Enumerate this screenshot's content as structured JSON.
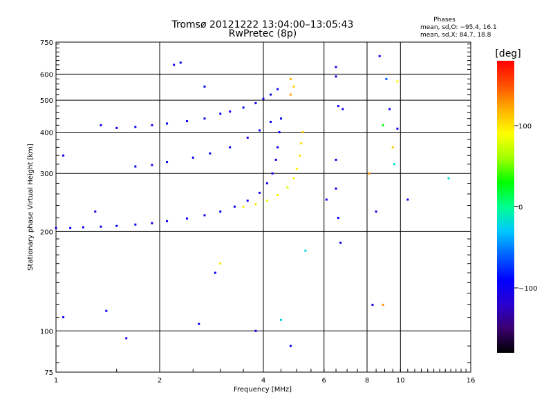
{
  "title": "Tromsø 20121222 13:04:00–13:05:43",
  "subtitle": "RwPretec (8p)",
  "phases_box": {
    "heading": "Phases",
    "line_o": "mean, sd,O: −95.4, 16.1",
    "line_x": "mean, sd,X:  84.7, 18.8"
  },
  "colorbar": {
    "label": "[deg]",
    "min": -180,
    "max": 180,
    "ticks": [
      {
        "value": 100,
        "label": "100"
      },
      {
        "value": 0,
        "label": "0"
      },
      {
        "value": -100,
        "label": "−100"
      }
    ],
    "stops": [
      "#000000",
      "#3a0070",
      "#2a00d0",
      "#0000ff",
      "#0060ff",
      "#00c8ff",
      "#00ff90",
      "#00ff00",
      "#a0ff00",
      "#ffff00",
      "#ffb000",
      "#ff5000",
      "#ff0000"
    ]
  },
  "chart_data": {
    "type": "scatter",
    "xlabel": "Frequency [MHz]",
    "ylabel": "Stationary phase Virtual Height [km]",
    "x_scale": "log",
    "y_scale": "log",
    "xlim": [
      1,
      16
    ],
    "ylim": [
      75,
      750
    ],
    "x_ticks": [
      {
        "v": 1,
        "label": "1"
      },
      {
        "v": 2,
        "label": "2"
      },
      {
        "v": 4,
        "label": "4"
      },
      {
        "v": 6,
        "label": "6"
      },
      {
        "v": 8,
        "label": "8"
      },
      {
        "v": 10,
        "label": "10"
      },
      {
        "v": 16,
        "label": "16"
      }
    ],
    "y_ticks": [
      {
        "v": 75,
        "label": "75"
      },
      {
        "v": 100,
        "label": "100"
      },
      {
        "v": 200,
        "label": "200"
      },
      {
        "v": 300,
        "label": "300"
      },
      {
        "v": 400,
        "label": "400"
      },
      {
        "v": 500,
        "label": "500"
      },
      {
        "v": 600,
        "label": "600"
      },
      {
        "v": 750,
        "label": "750"
      }
    ],
    "grid": true,
    "series": [
      {
        "points": [
          {
            "x": 1.0,
            "y": 205,
            "phase": -100
          },
          {
            "x": 1.1,
            "y": 205,
            "phase": -100
          },
          {
            "x": 1.2,
            "y": 206,
            "phase": -98
          },
          {
            "x": 1.35,
            "y": 207,
            "phase": -100
          },
          {
            "x": 1.5,
            "y": 208,
            "phase": -95
          },
          {
            "x": 1.7,
            "y": 210,
            "phase": -98
          },
          {
            "x": 1.9,
            "y": 212,
            "phase": -100
          },
          {
            "x": 2.1,
            "y": 215,
            "phase": -95
          },
          {
            "x": 2.4,
            "y": 219,
            "phase": -100
          },
          {
            "x": 2.7,
            "y": 224,
            "phase": -98
          },
          {
            "x": 3.0,
            "y": 230,
            "phase": -95
          },
          {
            "x": 3.3,
            "y": 238,
            "phase": -100
          },
          {
            "x": 3.6,
            "y": 248,
            "phase": -98
          },
          {
            "x": 3.9,
            "y": 262,
            "phase": -100
          },
          {
            "x": 4.1,
            "y": 280,
            "phase": -100
          },
          {
            "x": 4.25,
            "y": 300,
            "phase": -100
          },
          {
            "x": 4.35,
            "y": 330,
            "phase": -100
          },
          {
            "x": 4.4,
            "y": 360,
            "phase": -100
          },
          {
            "x": 4.45,
            "y": 400,
            "phase": -100
          },
          {
            "x": 4.5,
            "y": 440,
            "phase": -100
          }
        ]
      },
      {
        "points": [
          {
            "x": 1.35,
            "y": 420,
            "phase": -95
          },
          {
            "x": 1.5,
            "y": 412,
            "phase": -100
          },
          {
            "x": 1.7,
            "y": 415,
            "phase": -98
          },
          {
            "x": 1.9,
            "y": 420,
            "phase": -100
          },
          {
            "x": 2.1,
            "y": 425,
            "phase": -95
          },
          {
            "x": 2.4,
            "y": 432,
            "phase": -100
          },
          {
            "x": 2.7,
            "y": 440,
            "phase": -98
          },
          {
            "x": 3.0,
            "y": 455,
            "phase": -100
          },
          {
            "x": 3.2,
            "y": 462,
            "phase": -100
          },
          {
            "x": 3.5,
            "y": 475,
            "phase": -95
          },
          {
            "x": 3.8,
            "y": 490,
            "phase": -100
          },
          {
            "x": 4.0,
            "y": 505,
            "phase": -100
          },
          {
            "x": 4.2,
            "y": 520,
            "phase": -100
          },
          {
            "x": 4.4,
            "y": 540,
            "phase": -100
          }
        ]
      },
      {
        "points": [
          {
            "x": 1.7,
            "y": 315,
            "phase": -95
          },
          {
            "x": 1.9,
            "y": 318,
            "phase": -100
          },
          {
            "x": 2.1,
            "y": 325,
            "phase": -98
          },
          {
            "x": 2.5,
            "y": 335,
            "phase": -100
          },
          {
            "x": 2.8,
            "y": 345,
            "phase": -98
          },
          {
            "x": 3.2,
            "y": 360,
            "phase": -100
          },
          {
            "x": 3.6,
            "y": 385,
            "phase": -100
          },
          {
            "x": 3.9,
            "y": 405,
            "phase": -98
          },
          {
            "x": 4.2,
            "y": 430,
            "phase": -100
          }
        ]
      },
      {
        "points": [
          {
            "x": 3.5,
            "y": 238,
            "phase": 95
          },
          {
            "x": 3.8,
            "y": 242,
            "phase": 100
          },
          {
            "x": 4.1,
            "y": 248,
            "phase": 85
          },
          {
            "x": 4.4,
            "y": 258,
            "phase": 90
          },
          {
            "x": 4.7,
            "y": 272,
            "phase": 80
          },
          {
            "x": 4.9,
            "y": 290,
            "phase": 88
          },
          {
            "x": 5.0,
            "y": 310,
            "phase": 95
          },
          {
            "x": 5.1,
            "y": 340,
            "phase": 100
          },
          {
            "x": 5.15,
            "y": 370,
            "phase": 105
          },
          {
            "x": 5.2,
            "y": 400,
            "phase": 110
          },
          {
            "x": 4.8,
            "y": 520,
            "phase": 125
          },
          {
            "x": 4.9,
            "y": 550,
            "phase": 110
          }
        ]
      },
      {
        "points": [
          {
            "x": 2.2,
            "y": 640,
            "phase": -100
          },
          {
            "x": 2.3,
            "y": 650,
            "phase": -90
          },
          {
            "x": 2.7,
            "y": 550,
            "phase": -95
          },
          {
            "x": 6.5,
            "y": 630,
            "phase": -100
          },
          {
            "x": 6.5,
            "y": 590,
            "phase": -100
          },
          {
            "x": 6.6,
            "y": 480,
            "phase": -100
          },
          {
            "x": 6.5,
            "y": 330,
            "phase": -100
          },
          {
            "x": 6.5,
            "y": 270,
            "phase": -100
          },
          {
            "x": 6.6,
            "y": 220,
            "phase": -100
          },
          {
            "x": 6.7,
            "y": 185,
            "phase": -100
          },
          {
            "x": 6.1,
            "y": 250,
            "phase": -100
          },
          {
            "x": 8.7,
            "y": 680,
            "phase": -100
          },
          {
            "x": 8.5,
            "y": 230,
            "phase": -100
          },
          {
            "x": 9.1,
            "y": 580,
            "phase": -60
          },
          {
            "x": 4.8,
            "y": 580,
            "phase": 120
          },
          {
            "x": 1.3,
            "y": 230,
            "phase": -110
          },
          {
            "x": 1.05,
            "y": 340,
            "phase": -100
          },
          {
            "x": 1.05,
            "y": 110,
            "phase": -100
          },
          {
            "x": 1.4,
            "y": 115,
            "phase": -100
          },
          {
            "x": 1.6,
            "y": 95,
            "phase": -110
          },
          {
            "x": 2.6,
            "y": 105,
            "phase": -100
          },
          {
            "x": 3.8,
            "y": 100,
            "phase": -100
          },
          {
            "x": 4.5,
            "y": 108,
            "phase": -20
          },
          {
            "x": 4.8,
            "y": 90,
            "phase": -100
          },
          {
            "x": 3.0,
            "y": 160,
            "phase": 100
          },
          {
            "x": 2.9,
            "y": 150,
            "phase": -100
          },
          {
            "x": 5.3,
            "y": 175,
            "phase": -20
          },
          {
            "x": 6.8,
            "y": 470,
            "phase": -100
          },
          {
            "x": 8.1,
            "y": 300,
            "phase": 130
          },
          {
            "x": 9.3,
            "y": 470,
            "phase": -100
          },
          {
            "x": 9.8,
            "y": 410,
            "phase": -100
          },
          {
            "x": 8.3,
            "y": 120,
            "phase": -100
          },
          {
            "x": 8.9,
            "y": 120,
            "phase": 130
          },
          {
            "x": 10.5,
            "y": 250,
            "phase": -100
          },
          {
            "x": 13.8,
            "y": 290,
            "phase": -20
          },
          {
            "x": 8.9,
            "y": 420,
            "phase": 30
          },
          {
            "x": 9.8,
            "y": 570,
            "phase": 90
          },
          {
            "x": 9.5,
            "y": 360,
            "phase": 110
          },
          {
            "x": 9.6,
            "y": 320,
            "phase": -20
          }
        ]
      }
    ]
  }
}
